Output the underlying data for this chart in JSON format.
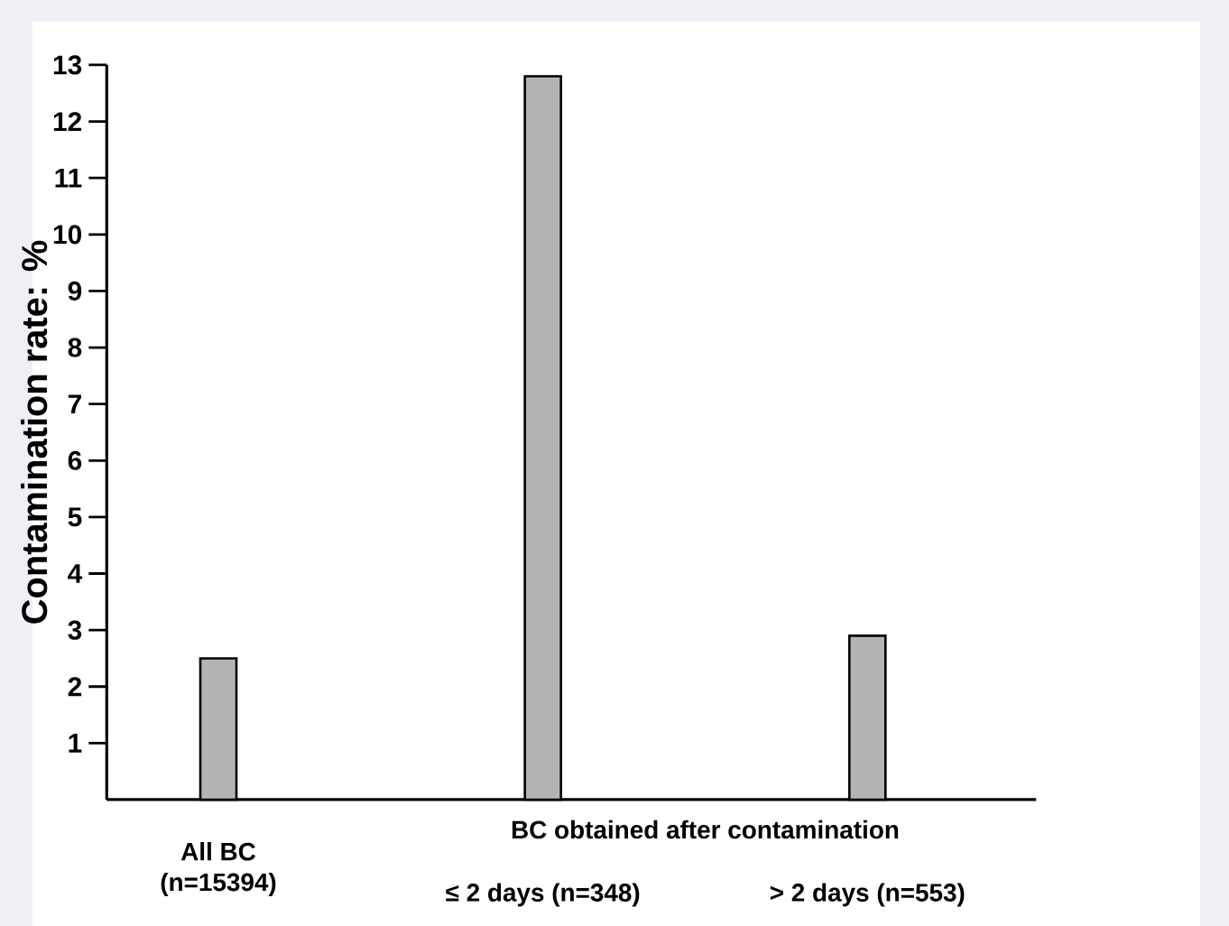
{
  "chart_data": {
    "type": "bar",
    "categories": [
      "All BC (n=15394)",
      "≤ 2 days (n=348)",
      "> 2 days (n=553)"
    ],
    "values": [
      2.5,
      12.8,
      2.9
    ],
    "color": "#b4b4b4",
    "ylabel": "Contamination rate: %",
    "ylim": [
      0,
      13
    ],
    "yticks": [
      1,
      2,
      3,
      4,
      5,
      6,
      7,
      8,
      9,
      10,
      11,
      12,
      13
    ],
    "annotations": [
      "BC obtained after contamination"
    ]
  }
}
